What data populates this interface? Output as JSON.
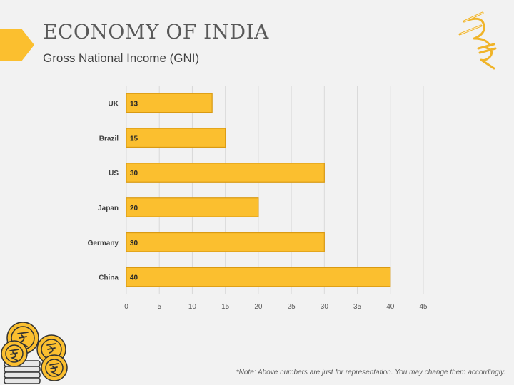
{
  "page": {
    "title": "ECONOMY OF INDIA",
    "subtitle": "Gross National Income (GNI)",
    "note": "*Note: Above numbers are just for representation. You may change them accordingly.",
    "accent_color": "#fbbf2f",
    "logo_icon": "rupee-logo-icon",
    "decoration_icon": "rupee-coins-icon"
  },
  "chart_data": {
    "type": "bar",
    "orientation": "horizontal",
    "categories": [
      "UK",
      "Brazil",
      "US",
      "Japan",
      "Germany",
      "China"
    ],
    "values": [
      13,
      15,
      30,
      20,
      30,
      40
    ],
    "xlim": [
      0,
      45
    ],
    "xticks": [
      0,
      5,
      10,
      15,
      20,
      25,
      30,
      35,
      40,
      45
    ],
    "grid": "vertical",
    "bar_color": "#fbbf2f",
    "bar_edge_color": "#d99a13",
    "data_labels": true
  }
}
